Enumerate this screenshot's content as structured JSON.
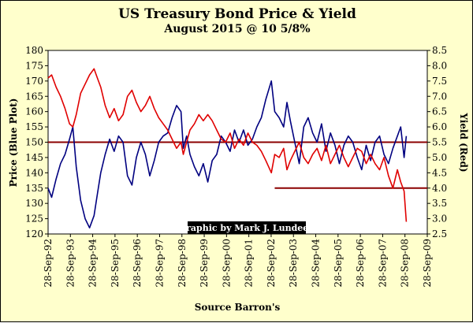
{
  "chart_data": {
    "type": "line",
    "title": "US Treasury Bond Price & Yield",
    "subtitle": "August 2015 @ 10 5/8%",
    "xlabel": "Source Barron's",
    "ylabel_left": "Price (Blue Plot)",
    "ylabel_right": "Yield (Red)",
    "credit": "Graphic by Mark J. Lundeen",
    "x_ticks": [
      "28-Sep-92",
      "28-Sep-93",
      "28-Sep-94",
      "28-Sep-95",
      "28-Sep-96",
      "28-Sep-97",
      "28-Sep-98",
      "28-Sep-99",
      "28-Sep-00",
      "28-Sep-01",
      "28-Sep-02",
      "28-Sep-03",
      "28-Sep-04",
      "28-Sep-05",
      "28-Sep-06",
      "28-Sep-07",
      "28-Sep-08",
      "28-Sep-09"
    ],
    "x_range": [
      1992.74,
      2009.74
    ],
    "y_left": {
      "min": 120,
      "max": 180,
      "ticks": [
        "120",
        "125",
        "130",
        "135",
        "140",
        "145",
        "150",
        "155",
        "160",
        "165",
        "170",
        "175",
        "180"
      ]
    },
    "y_right": {
      "min": 2.5,
      "max": 8.5,
      "ticks": [
        "2.5",
        "3.0",
        "3.5",
        "4.0",
        "4.5",
        "5.0",
        "5.5",
        "6.0",
        "6.5",
        "7.0",
        "7.5",
        "8.0",
        "8.5"
      ]
    },
    "reference_lines": [
      {
        "axis": "left",
        "value": 150,
        "x_from": 1992.74,
        "x_to": 2009.74,
        "color": "#8b0000"
      },
      {
        "axis": "left",
        "value": 135,
        "x_from": 2002.9,
        "x_to": 2009.74,
        "color": "#8b0000"
      }
    ],
    "series": [
      {
        "name": "Price",
        "axis": "left",
        "color": "#000080",
        "x": [
          1992.74,
          1992.9,
          1993.1,
          1993.3,
          1993.5,
          1993.7,
          1993.85,
          1994.0,
          1994.2,
          1994.4,
          1994.6,
          1994.8,
          1994.95,
          1995.1,
          1995.3,
          1995.5,
          1995.7,
          1995.9,
          1996.1,
          1996.3,
          1996.5,
          1996.7,
          1996.9,
          1997.1,
          1997.3,
          1997.5,
          1997.7,
          1997.9,
          1998.1,
          1998.3,
          1998.5,
          1998.7,
          1998.8,
          1998.95,
          1999.1,
          1999.3,
          1999.5,
          1999.7,
          1999.9,
          2000.1,
          2000.3,
          2000.5,
          2000.7,
          2000.9,
          2001.1,
          2001.3,
          2001.5,
          2001.7,
          2001.9,
          2002.1,
          2002.3,
          2002.5,
          2002.75,
          2002.9,
          2003.1,
          2003.3,
          2003.45,
          2003.6,
          2003.8,
          2004.0,
          2004.2,
          2004.4,
          2004.6,
          2004.8,
          2005.0,
          2005.2,
          2005.4,
          2005.6,
          2005.8,
          2006.0,
          2006.2,
          2006.4,
          2006.6,
          2006.8,
          2007.0,
          2007.2,
          2007.4,
          2007.6,
          2007.8,
          2008.0,
          2008.2,
          2008.4,
          2008.55,
          2008.7,
          2008.8
        ],
        "values": [
          135,
          132,
          138,
          143,
          146,
          151,
          155,
          142,
          131,
          125,
          122,
          126,
          133,
          140,
          146,
          151,
          147,
          152,
          150,
          139,
          136,
          145,
          150,
          146,
          139,
          144,
          150,
          152,
          153,
          158,
          162,
          160,
          148,
          152,
          146,
          142,
          139,
          143,
          137,
          144,
          146,
          152,
          150,
          147,
          154,
          150,
          154,
          149,
          151,
          155,
          158,
          164,
          170,
          160,
          158,
          155,
          163,
          157,
          150,
          143,
          155,
          158,
          153,
          150,
          156,
          147,
          153,
          149,
          143,
          149,
          152,
          150,
          145,
          141,
          149,
          144,
          150,
          152,
          146,
          143,
          148,
          152,
          155,
          145,
          152
        ]
      },
      {
        "name": "Yield",
        "axis": "right",
        "color": "#e00000",
        "x": [
          1992.74,
          1992.9,
          1993.1,
          1993.3,
          1993.5,
          1993.7,
          1993.85,
          1994.0,
          1994.2,
          1994.4,
          1994.6,
          1994.8,
          1994.95,
          1995.1,
          1995.3,
          1995.5,
          1995.7,
          1995.9,
          1996.1,
          1996.3,
          1996.5,
          1996.7,
          1996.9,
          1997.1,
          1997.3,
          1997.5,
          1997.7,
          1997.9,
          1998.1,
          1998.3,
          1998.5,
          1998.7,
          1998.8,
          1998.95,
          1999.1,
          1999.3,
          1999.5,
          1999.7,
          1999.9,
          2000.1,
          2000.3,
          2000.5,
          2000.7,
          2000.9,
          2001.1,
          2001.3,
          2001.5,
          2001.7,
          2001.9,
          2002.1,
          2002.3,
          2002.5,
          2002.75,
          2002.9,
          2003.1,
          2003.3,
          2003.45,
          2003.6,
          2003.8,
          2004.0,
          2004.2,
          2004.4,
          2004.6,
          2004.8,
          2005.0,
          2005.2,
          2005.4,
          2005.6,
          2005.8,
          2006.0,
          2006.2,
          2006.4,
          2006.6,
          2006.8,
          2007.0,
          2007.2,
          2007.4,
          2007.6,
          2007.8,
          2008.0,
          2008.2,
          2008.4,
          2008.55,
          2008.7,
          2008.8
        ],
        "values": [
          7.6,
          7.7,
          7.3,
          7.0,
          6.6,
          6.1,
          6.0,
          6.4,
          7.1,
          7.4,
          7.7,
          7.9,
          7.6,
          7.3,
          6.7,
          6.3,
          6.6,
          6.2,
          6.4,
          7.0,
          7.2,
          6.8,
          6.5,
          6.7,
          7.0,
          6.6,
          6.3,
          6.1,
          5.9,
          5.6,
          5.3,
          5.5,
          5.1,
          5.5,
          5.9,
          6.1,
          6.4,
          6.2,
          6.4,
          6.2,
          5.9,
          5.6,
          5.5,
          5.8,
          5.3,
          5.6,
          5.4,
          5.8,
          5.5,
          5.4,
          5.2,
          4.9,
          4.5,
          5.1,
          5.0,
          5.3,
          4.6,
          4.9,
          5.2,
          5.5,
          5.0,
          4.8,
          5.1,
          5.3,
          4.9,
          5.4,
          4.8,
          5.1,
          5.4,
          5.0,
          4.7,
          5.0,
          5.3,
          5.2,
          4.8,
          5.1,
          4.8,
          4.6,
          5.0,
          4.4,
          4.0,
          4.6,
          4.2,
          3.9,
          2.9
        ]
      }
    ]
  }
}
